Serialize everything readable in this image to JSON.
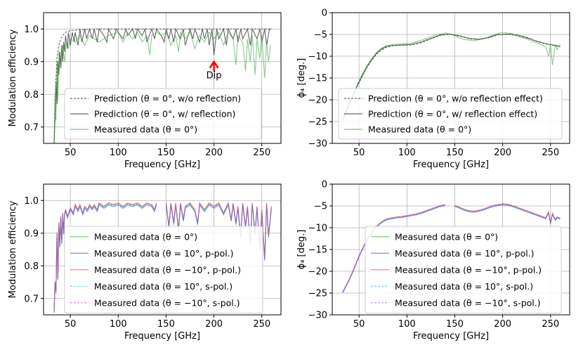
{
  "chart_data": [
    {
      "type": "line",
      "xlabel": "Frequency [GHz]",
      "ylabel": "Modulation efficiency",
      "xlim": [
        22,
        270
      ],
      "ylim": [
        0.65,
        1.05
      ],
      "xticks": [
        50,
        100,
        150,
        200,
        250
      ],
      "yticks": [
        0.7,
        0.8,
        0.9,
        1.0
      ],
      "xtick_labels": [
        "50",
        "100",
        "150",
        "200",
        "250"
      ],
      "ytick_labels": [
        "0.7",
        "0.8",
        "0.9",
        "1.0"
      ],
      "grid": true,
      "legend_position": "lower-right",
      "annotation": {
        "text": "Dip",
        "x": 200,
        "y": 0.9,
        "text_y": 0.87,
        "color": "#ff0000"
      },
      "series": [
        {
          "name": "Prediction (θ = 0°, w/o reflection)",
          "color": "#555555",
          "style": "dashed",
          "x": [
            33,
            34,
            35,
            36,
            38,
            40,
            42,
            45,
            50,
            60,
            70,
            80,
            100,
            120,
            150,
            200,
            250,
            260
          ],
          "y": [
            0.65,
            0.76,
            0.85,
            0.91,
            0.95,
            0.97,
            0.98,
            0.99,
            0.995,
            0.998,
            0.999,
            1.0,
            1.0,
            1.0,
            1.0,
            1.0,
            1.0,
            1.0
          ]
        },
        {
          "name": "Prediction (θ = 0°, w/ reflection)",
          "color": "#555555",
          "style": "solid",
          "x": [
            33,
            34,
            35,
            36,
            37,
            38,
            39,
            40,
            41,
            42,
            43,
            44,
            45,
            47,
            48,
            50,
            52,
            54,
            55,
            58,
            60,
            62,
            65,
            67,
            70,
            73,
            75,
            78,
            80,
            85,
            88,
            90,
            95,
            98,
            100,
            105,
            108,
            110,
            115,
            118,
            120,
            125,
            128,
            130,
            135,
            138,
            140,
            145,
            148,
            150,
            153,
            155,
            158,
            160,
            165,
            168,
            170,
            175,
            178,
            180,
            185,
            188,
            190,
            193,
            195,
            198,
            200,
            203,
            205,
            210,
            213,
            215,
            220,
            223,
            225,
            228,
            230,
            235,
            238,
            240,
            245,
            248,
            250,
            253,
            255,
            258,
            260
          ],
          "y": [
            0.65,
            0.73,
            0.84,
            0.77,
            0.9,
            0.86,
            0.93,
            0.88,
            0.95,
            0.9,
            0.96,
            0.93,
            0.98,
            0.94,
            0.99,
            0.95,
            0.99,
            0.96,
            0.99,
            0.95,
            1.0,
            0.96,
            1.0,
            0.97,
            1.0,
            0.97,
            1.0,
            0.96,
            1.0,
            0.98,
            0.96,
            1.0,
            0.97,
            1.0,
            0.99,
            0.97,
            1.0,
            0.98,
            1.0,
            0.97,
            1.0,
            0.98,
            1.0,
            0.96,
            1.0,
            0.97,
            1.0,
            0.98,
            0.96,
            1.0,
            0.97,
            1.0,
            0.96,
            1.0,
            0.97,
            1.0,
            0.95,
            1.0,
            0.97,
            1.0,
            0.96,
            1.0,
            0.97,
            1.0,
            0.95,
            1.0,
            0.92,
            1.0,
            0.97,
            1.0,
            0.95,
            1.0,
            0.97,
            1.0,
            0.96,
            1.0,
            0.97,
            1.0,
            0.95,
            1.0,
            0.97,
            1.0,
            0.96,
            1.0,
            0.95,
            1.0,
            1.0
          ]
        },
        {
          "name": "Measured data (θ = 0°)",
          "color": "#2ca02c",
          "style": "solid",
          "x": [
            33,
            34,
            35,
            36,
            37,
            38,
            40,
            42,
            44,
            46,
            48,
            50,
            55,
            60,
            65,
            70,
            75,
            80,
            90,
            100,
            105,
            110,
            115,
            120,
            125,
            130,
            133,
            135,
            140,
            145,
            150,
            155,
            160,
            163,
            165,
            170,
            175,
            180,
            185,
            190,
            195,
            200,
            205,
            210,
            215,
            220,
            223,
            225,
            230,
            233,
            235,
            238,
            240,
            243,
            245,
            248,
            250,
            253,
            255,
            257,
            259
          ],
          "y": [
            0.66,
            0.8,
            0.72,
            0.9,
            0.78,
            0.93,
            0.88,
            0.95,
            0.9,
            0.96,
            0.94,
            0.97,
            0.96,
            0.98,
            0.95,
            0.98,
            0.97,
            0.96,
            0.98,
            0.99,
            0.96,
            0.99,
            0.97,
            0.99,
            0.96,
            0.98,
            0.92,
            0.98,
            0.99,
            0.98,
            0.99,
            0.95,
            0.98,
            0.93,
            0.99,
            0.97,
            0.99,
            0.94,
            0.98,
            0.96,
            0.99,
            0.97,
            0.99,
            0.95,
            0.99,
            0.97,
            0.89,
            0.98,
            0.96,
            0.87,
            0.97,
            0.9,
            0.98,
            0.86,
            0.97,
            0.91,
            0.98,
            0.85,
            0.96,
            0.9,
            0.95
          ]
        }
      ]
    },
    {
      "type": "line",
      "xlabel": "Frequency [GHz]",
      "ylabel": "ϕ₄ [deg.]",
      "xlim": [
        22,
        270
      ],
      "ylim": [
        -30,
        0
      ],
      "xticks": [
        50,
        100,
        150,
        200,
        250
      ],
      "yticks": [
        -30,
        -25,
        -20,
        -15,
        -10,
        -5,
        0
      ],
      "xtick_labels": [
        "50",
        "100",
        "150",
        "200",
        "250"
      ],
      "ytick_labels": [
        "−30",
        "−25",
        "−20",
        "−15",
        "−10",
        "−5",
        "0"
      ],
      "grid": true,
      "legend_position": "lower-right",
      "series": [
        {
          "name": "Prediction (θ = 0°, w/o reflection effect)",
          "color": "#555555",
          "style": "dashed",
          "x": [
            33,
            38,
            43,
            48,
            53,
            58,
            63,
            68,
            73,
            78,
            85,
            95,
            105,
            115,
            125,
            135,
            145,
            155,
            165,
            175,
            185,
            195,
            205,
            215,
            225,
            235,
            245,
            255,
            260
          ],
          "y": [
            -24.5,
            -22.0,
            -19.5,
            -17.0,
            -14.8,
            -12.7,
            -11.0,
            -9.6,
            -8.6,
            -8.0,
            -7.6,
            -7.5,
            -7.4,
            -6.9,
            -6.0,
            -5.2,
            -5.0,
            -5.4,
            -6.0,
            -6.2,
            -5.8,
            -5.1,
            -5.0,
            -5.2,
            -5.8,
            -6.6,
            -7.2,
            -7.6,
            -7.8
          ]
        },
        {
          "name": "Prediction (θ = 0°, w/ reflection effect)",
          "color": "#555555",
          "style": "solid",
          "x": [
            33,
            38,
            43,
            48,
            53,
            58,
            63,
            68,
            73,
            78,
            85,
            95,
            105,
            115,
            125,
            135,
            145,
            155,
            165,
            175,
            185,
            195,
            205,
            215,
            225,
            235,
            245,
            255,
            260
          ],
          "y": [
            -24.3,
            -21.8,
            -19.3,
            -16.8,
            -14.6,
            -12.5,
            -10.8,
            -9.4,
            -8.4,
            -7.8,
            -7.5,
            -7.4,
            -7.3,
            -6.7,
            -5.9,
            -5.1,
            -4.9,
            -5.3,
            -5.9,
            -6.1,
            -5.7,
            -5.0,
            -4.9,
            -5.1,
            -5.7,
            -6.5,
            -7.1,
            -7.5,
            -7.7
          ]
        },
        {
          "name": "Measured data (θ = 0°)",
          "color": "#2ca02c",
          "style": "solid",
          "x": [
            33,
            38,
            43,
            48,
            53,
            58,
            63,
            68,
            73,
            78,
            85,
            95,
            105,
            115,
            125,
            130,
            135,
            140,
            145,
            150,
            155,
            160,
            165,
            170,
            175,
            180,
            185,
            190,
            195,
            200,
            205,
            210,
            215,
            220,
            225,
            230,
            235,
            240,
            245,
            248,
            250,
            252,
            255,
            257,
            260
          ],
          "y": [
            -24.8,
            -22.2,
            -19.4,
            -16.6,
            -14.2,
            -12.2,
            -10.6,
            -9.2,
            -8.2,
            -7.6,
            -7.3,
            -7.2,
            -7.0,
            -6.3,
            -5.6,
            -5.1,
            -4.9,
            -4.7,
            -4.9,
            -5.3,
            -5.8,
            -6.2,
            -6.3,
            -6.5,
            -6.2,
            -6.0,
            -5.6,
            -5.2,
            -4.8,
            -4.5,
            -4.7,
            -4.8,
            -5.5,
            -5.7,
            -6.0,
            -6.6,
            -6.9,
            -7.3,
            -7.9,
            -10.0,
            -7.5,
            -12.0,
            -7.4,
            -8.5,
            -7.3
          ]
        }
      ]
    },
    {
      "type": "line",
      "xlabel": "Frequency [GHz]",
      "ylabel": "Modulation efficiency",
      "xlim": [
        22,
        270
      ],
      "ylim": [
        0.65,
        1.05
      ],
      "xticks": [
        50,
        100,
        150,
        200,
        250
      ],
      "yticks": [
        0.7,
        0.8,
        0.9,
        1.0
      ],
      "xtick_labels": [
        "50",
        "100",
        "150",
        "200",
        "250"
      ],
      "ytick_labels": [
        "0.7",
        "0.8",
        "0.9",
        "1.0"
      ],
      "grid": true,
      "legend_position": "lower-right",
      "gap": [
        140,
        150
      ],
      "series_template": {
        "x": [
          33,
          34,
          35,
          36,
          37,
          38,
          39,
          40,
          41,
          42,
          43,
          44,
          45,
          47,
          50,
          53,
          55,
          58,
          60,
          63,
          65,
          68,
          70,
          73,
          75,
          78,
          80,
          85,
          90,
          95,
          100,
          105,
          110,
          115,
          120,
          125,
          130,
          135,
          138,
          140,
          150,
          153,
          155,
          158,
          160,
          163,
          165,
          168,
          170,
          175,
          180,
          183,
          185,
          190,
          195,
          200,
          205,
          210,
          215,
          218,
          220,
          223,
          225,
          228,
          230,
          233,
          235,
          238,
          240,
          243,
          245,
          248,
          250,
          253,
          255,
          257,
          260
        ],
        "y": [
          0.66,
          0.75,
          0.72,
          0.9,
          0.76,
          0.93,
          0.86,
          0.95,
          0.87,
          0.96,
          0.9,
          0.96,
          0.97,
          0.95,
          0.975,
          0.96,
          0.985,
          0.97,
          0.985,
          0.96,
          0.98,
          0.97,
          0.985,
          0.975,
          0.985,
          0.97,
          0.99,
          0.98,
          0.99,
          0.985,
          0.99,
          0.98,
          0.99,
          0.985,
          0.99,
          0.98,
          0.99,
          0.985,
          0.97,
          0.99,
          0.99,
          0.92,
          0.99,
          0.93,
          0.99,
          0.91,
          0.99,
          0.94,
          0.98,
          0.99,
          0.97,
          0.93,
          0.99,
          0.97,
          0.99,
          0.98,
          0.99,
          0.96,
          0.99,
          0.94,
          0.99,
          0.93,
          0.98,
          0.89,
          0.99,
          0.92,
          0.98,
          0.87,
          0.99,
          0.9,
          0.98,
          0.85,
          0.97,
          0.82,
          0.99,
          0.89,
          0.98
        ]
      },
      "series": [
        {
          "name": "Measured data (θ = 0°)",
          "color": "#2ca02c",
          "style": "solid",
          "offset": 0
        },
        {
          "name": "Measured data (θ = 10°, p-pol.)",
          "color": "#1f3fff",
          "style": "solid",
          "offset": -0.004
        },
        {
          "name": "Measured data (θ = −10°, p-pol.)",
          "color": "#ff3030",
          "style": "solid",
          "offset": 0.003
        },
        {
          "name": "Measured data (θ = 10°, s-pol.)",
          "color": "#17becf",
          "style": "dashed",
          "offset": -0.002
        },
        {
          "name": "Measured data (θ = −10°, s-pol.)",
          "color": "#cc44cc",
          "style": "dashed",
          "offset": 0.001
        }
      ]
    },
    {
      "type": "line",
      "xlabel": "Frequency [GHz]",
      "ylabel": "ϕ₄ [deg.]",
      "xlim": [
        22,
        270
      ],
      "ylim": [
        -30,
        0
      ],
      "xticks": [
        50,
        100,
        150,
        200,
        250
      ],
      "yticks": [
        -30,
        -25,
        -20,
        -15,
        -10,
        -5,
        0
      ],
      "xtick_labels": [
        "50",
        "100",
        "150",
        "200",
        "250"
      ],
      "ytick_labels": [
        "−30",
        "−25",
        "−20",
        "−15",
        "−10",
        "−5",
        "0"
      ],
      "grid": true,
      "legend_position": "lower-right",
      "gap": [
        140,
        150
      ],
      "series_template": {
        "x": [
          33,
          36,
          40,
          44,
          48,
          52,
          56,
          60,
          64,
          68,
          72,
          76,
          80,
          85,
          90,
          95,
          100,
          105,
          110,
          115,
          120,
          125,
          130,
          135,
          140,
          150,
          155,
          160,
          165,
          170,
          175,
          180,
          185,
          190,
          195,
          200,
          205,
          210,
          215,
          220,
          225,
          230,
          235,
          240,
          245,
          248,
          250,
          252,
          255,
          257,
          260
        ],
        "y": [
          -24.8,
          -23.5,
          -21.8,
          -19.8,
          -17.6,
          -15.6,
          -13.8,
          -12.2,
          -10.9,
          -9.8,
          -9.0,
          -8.4,
          -8.0,
          -7.8,
          -7.6,
          -7.5,
          -7.3,
          -7.1,
          -6.9,
          -6.6,
          -6.2,
          -5.8,
          -5.4,
          -5.0,
          -4.8,
          -5.0,
          -5.4,
          -5.9,
          -6.2,
          -6.3,
          -6.1,
          -5.8,
          -5.4,
          -5.0,
          -4.8,
          -4.6,
          -4.7,
          -5.0,
          -5.4,
          -5.8,
          -6.2,
          -6.6,
          -7.0,
          -7.4,
          -7.8,
          -6.5,
          -9.0,
          -6.8,
          -8.2,
          -7.6,
          -7.9
        ]
      },
      "series": [
        {
          "name": "Measured data (θ = 0°)",
          "color": "#2ca02c",
          "style": "solid",
          "offset": 0
        },
        {
          "name": "Measured data (θ = 10°, p-pol.)",
          "color": "#1f3fff",
          "style": "solid",
          "offset": -0.15
        },
        {
          "name": "Measured data (θ = −10°, p-pol.)",
          "color": "#ff3030",
          "style": "solid",
          "offset": 0.12
        },
        {
          "name": "Measured data (θ = 10°, s-pol.)",
          "color": "#17becf",
          "style": "dashed",
          "offset": -0.08
        },
        {
          "name": "Measured data (θ = −10°, s-pol.)",
          "color": "#cc44cc",
          "style": "dashed",
          "offset": 0.05
        }
      ]
    }
  ]
}
